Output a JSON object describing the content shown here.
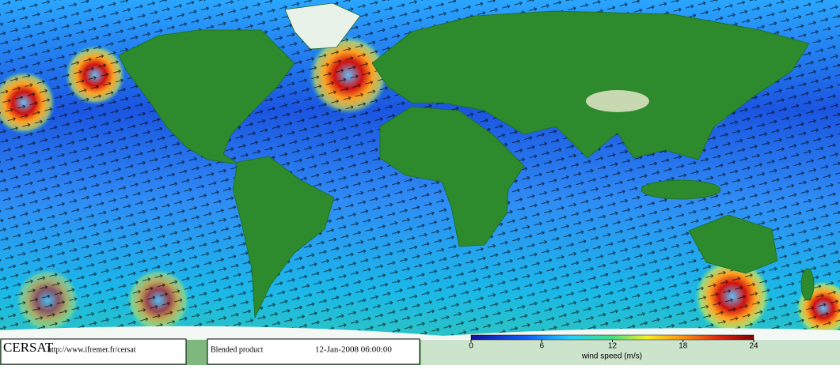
{
  "footer": {
    "logo": "CERSAT",
    "url": "http://www.ifremer.fr/cersat",
    "product": "Blended product",
    "datetime": "12-Jan-2008 06:00:00"
  },
  "colorbar": {
    "label": "wind speed (m/s)",
    "lim": [
      0,
      24
    ],
    "ticks": [
      0,
      6,
      12,
      18,
      24
    ]
  }
}
